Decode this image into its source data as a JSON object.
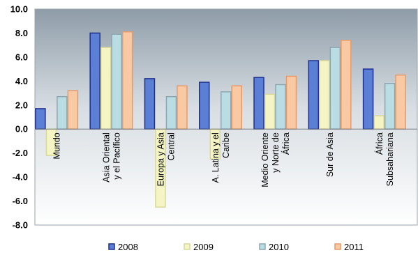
{
  "chart_data": {
    "type": "bar",
    "categories": [
      [
        "Mundo"
      ],
      [
        "Asia Oriental",
        "y el Pacífico"
      ],
      [
        "Europa y Asia",
        "Central"
      ],
      [
        "A. Latina y el",
        "Caribe"
      ],
      [
        "Medio Oriente",
        "y Norte de",
        "África"
      ],
      [
        "Sur de Asia"
      ],
      [
        "África",
        "Subsahariana"
      ]
    ],
    "series": [
      {
        "name": "2008",
        "values": [
          1.7,
          8.0,
          4.2,
          3.9,
          4.3,
          5.7,
          5.0
        ]
      },
      {
        "name": "2009",
        "values": [
          -2.2,
          6.8,
          -6.5,
          -2.5,
          2.9,
          5.7,
          1.1
        ]
      },
      {
        "name": "2010",
        "values": [
          2.7,
          7.9,
          2.7,
          3.1,
          3.7,
          6.8,
          3.8
        ]
      },
      {
        "name": "2011",
        "values": [
          3.2,
          8.1,
          3.6,
          3.6,
          4.4,
          7.4,
          4.5
        ]
      }
    ],
    "ylim": [
      -8.0,
      10.0
    ],
    "yticks": [
      "10.0",
      "8.0",
      "6.0",
      "4.0",
      "2.0",
      "0.0",
      "-2.0",
      "-4.0",
      "-6.0",
      "-8.0"
    ],
    "grid": false,
    "legend_position": "bottom",
    "colors": {
      "2008": {
        "fill": "#5b7fd4",
        "stroke": "#1f2f8f"
      },
      "2009": {
        "fill": "#f4f4c4",
        "stroke": "#d8d89a"
      },
      "2010": {
        "fill": "#b9dde2",
        "stroke": "#8da7b0"
      },
      "2011": {
        "fill": "#f8c9a2",
        "stroke": "#e59b6a"
      }
    },
    "plot_background_top": "#8e9ca8",
    "plot_background_bottom": "#ffffff"
  }
}
